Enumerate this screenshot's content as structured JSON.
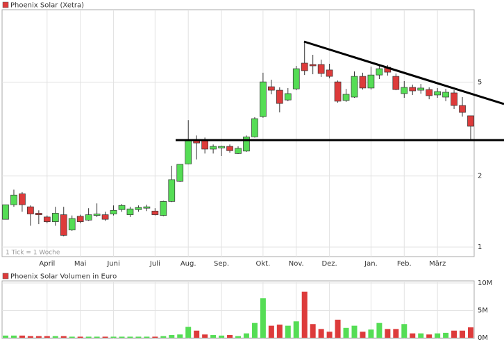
{
  "chart_data": [
    {
      "type": "candlestick",
      "categories": [
        null,
        null,
        null,
        null,
        null,
        "April",
        null,
        null,
        null,
        "Mai",
        null,
        null,
        null,
        "Juni",
        null,
        null,
        null,
        null,
        "Juli",
        null,
        null,
        null,
        "Aug.",
        null,
        null,
        null,
        "Sep.",
        null,
        null,
        null,
        null,
        "Okt.",
        null,
        null,
        null,
        "Nov.",
        null,
        null,
        null,
        "Dez.",
        null,
        null,
        null,
        null,
        "Jan.",
        null,
        null,
        null,
        "Feb.",
        null,
        null,
        null,
        "März",
        null,
        null,
        null,
        null
      ],
      "series": [
        {
          "name": "Phoenix Solar (Xetra)",
          "color": "#dd3b3b",
          "open": [
            1.31,
            1.51,
            1.68,
            1.48,
            1.39,
            1.34,
            1.28,
            1.37,
            1.18,
            1.35,
            1.3,
            1.36,
            1.37,
            1.38,
            1.44,
            1.37,
            1.44,
            1.46,
            1.42,
            1.36,
            1.56,
            1.9,
            2.25,
            2.82,
            2.82,
            2.6,
            2.63,
            2.67,
            2.49,
            2.55,
            2.93,
            3.57,
            4.78,
            4.62,
            4.2,
            4.68,
            6.02,
            5.94,
            5.94,
            5.63,
            5.01,
            4.18,
            4.32,
            5.29,
            4.72,
            5.36,
            5.78,
            5.29,
            4.47,
            4.75,
            4.62,
            4.65,
            4.41,
            4.32,
            4.5,
            3.98,
            3.6
          ],
          "high": [
            1.51,
            1.75,
            1.71,
            1.5,
            1.43,
            1.36,
            1.48,
            1.48,
            1.36,
            1.37,
            1.46,
            1.53,
            1.41,
            1.5,
            1.52,
            1.48,
            1.5,
            1.51,
            1.46,
            1.57,
            2.21,
            2.24,
            3.45,
            2.97,
            2.91,
            2.72,
            2.69,
            2.72,
            2.67,
            2.97,
            3.55,
            5.48,
            5.12,
            4.75,
            4.72,
            5.86,
            7.43,
            6.53,
            6.23,
            5.98,
            5.08,
            4.68,
            5.55,
            5.48,
            5.82,
            5.9,
            5.9,
            5.44,
            5.05,
            4.88,
            4.91,
            4.75,
            4.72,
            4.68,
            4.62,
            4.32,
            3.6
          ],
          "low": [
            1.31,
            1.48,
            1.41,
            1.23,
            1.25,
            1.26,
            1.23,
            1.11,
            1.17,
            1.26,
            1.29,
            1.34,
            1.29,
            1.36,
            1.41,
            1.34,
            1.41,
            1.42,
            1.36,
            1.35,
            1.55,
            1.89,
            2.24,
            2.35,
            2.49,
            2.49,
            2.43,
            2.51,
            2.48,
            2.53,
            2.91,
            3.53,
            4.44,
            3.72,
            4.15,
            4.62,
            5.36,
            5.4,
            5.26,
            5.19,
            4.09,
            4.12,
            4.29,
            4.65,
            4.65,
            5.15,
            5.33,
            4.62,
            4.29,
            4.41,
            4.47,
            4.23,
            4.29,
            4.15,
            3.85,
            3.57,
            2.86
          ],
          "close": [
            1.51,
            1.66,
            1.51,
            1.38,
            1.37,
            1.28,
            1.39,
            1.12,
            1.32,
            1.28,
            1.37,
            1.38,
            1.31,
            1.43,
            1.5,
            1.45,
            1.47,
            1.48,
            1.37,
            1.56,
            1.93,
            2.24,
            2.82,
            2.76,
            2.6,
            2.67,
            2.67,
            2.56,
            2.62,
            2.93,
            3.5,
            5.01,
            4.62,
            4.06,
            4.47,
            5.7,
            5.59,
            5.86,
            5.44,
            5.29,
            4.15,
            4.44,
            5.29,
            4.72,
            5.36,
            5.7,
            5.51,
            4.65,
            4.75,
            4.59,
            4.72,
            4.38,
            4.56,
            4.53,
            3.98,
            3.72,
            3.25
          ]
        }
      ],
      "up_color": "#55dd55",
      "down_color": "#dd3b3b",
      "log_scale": true,
      "ylim": [
        0.91,
        10.14
      ],
      "yticks": [
        1,
        2,
        5
      ],
      "grid": true,
      "annotation": "1 Tick = 1 Woche"
    },
    {
      "type": "bar",
      "series": [
        {
          "name": "Phoenix Solar Volumen in Euro",
          "color": "#dd3b3b",
          "values": [
            400000,
            400000,
            400000,
            300000,
            300000,
            300000,
            300000,
            300000,
            200000,
            200000,
            200000,
            200000,
            200000,
            200000,
            200000,
            200000,
            200000,
            200000,
            200000,
            300000,
            500000,
            600000,
            2000000,
            1300000,
            600000,
            500000,
            400000,
            500000,
            300000,
            800000,
            2700000,
            7200000,
            2200000,
            2400000,
            2200000,
            3000000,
            8400000,
            2500000,
            1600000,
            1100000,
            3300000,
            1800000,
            2200000,
            1100000,
            1500000,
            2700000,
            1600000,
            1600000,
            2500000,
            800000,
            800000,
            600000,
            800000,
            900000,
            1300000,
            1300000,
            1900000
          ]
        }
      ],
      "ylim": [
        0,
        10000000
      ],
      "yticks": [
        {
          "value": 0,
          "label": "0M"
        },
        {
          "value": 5000000,
          "label": "5M"
        },
        {
          "value": 10000000,
          "label": "10M"
        }
      ],
      "grid": true
    }
  ]
}
